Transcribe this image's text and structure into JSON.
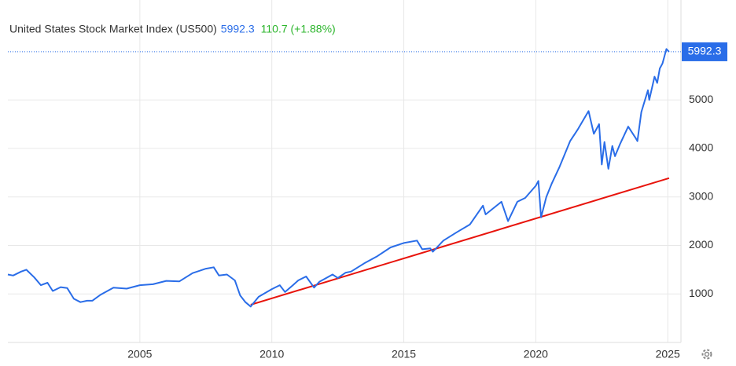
{
  "chart_data": {
    "type": "line",
    "title": "United States Stock Market Index (US500)",
    "last_value": 5992.3,
    "change_label": "110.7 (+1.88%)",
    "xlim": [
      2000,
      2025.5
    ],
    "xticks": [
      2005,
      2010,
      2015,
      2020,
      2025
    ],
    "ylim": [
      0,
      7060
    ],
    "yticks": [
      1000,
      2000,
      3000,
      4000,
      5000
    ],
    "grid": true,
    "series": [
      {
        "color": "#2a6de8",
        "x": [
          2000.0,
          2000.2,
          2000.5,
          2000.7,
          2001.0,
          2001.25,
          2001.5,
          2001.7,
          2002.0,
          2002.25,
          2002.5,
          2002.75,
          2003.0,
          2003.2,
          2003.5,
          2004.0,
          2004.5,
          2005.0,
          2005.5,
          2006.0,
          2006.5,
          2007.0,
          2007.5,
          2007.8,
          2008.0,
          2008.3,
          2008.6,
          2008.8,
          2009.0,
          2009.2,
          2009.5,
          2010.0,
          2010.3,
          2010.5,
          2010.8,
          2011.0,
          2011.3,
          2011.6,
          2011.8,
          2012.0,
          2012.3,
          2012.5,
          2012.8,
          2013.0,
          2013.5,
          2014.0,
          2014.5,
          2015.0,
          2015.5,
          2015.7,
          2016.0,
          2016.1,
          2016.5,
          2017.0,
          2017.5,
          2018.0,
          2018.1,
          2018.7,
          2018.95,
          2019.3,
          2019.6,
          2020.0,
          2020.1,
          2020.2,
          2020.4,
          2020.6,
          2020.9,
          2021.0,
          2021.3,
          2021.6,
          2022.0,
          2022.2,
          2022.4,
          2022.5,
          2022.6,
          2022.75,
          2022.9,
          2023.0,
          2023.2,
          2023.5,
          2023.8,
          2023.85,
          2024.0,
          2024.25,
          2024.3,
          2024.5,
          2024.6,
          2024.7,
          2024.8,
          2024.95,
          2025.05
        ],
        "values": [
          1400,
          1380,
          1460,
          1500,
          1340,
          1180,
          1230,
          1060,
          1140,
          1120,
          900,
          830,
          860,
          860,
          980,
          1130,
          1110,
          1180,
          1200,
          1270,
          1260,
          1430,
          1520,
          1550,
          1380,
          1400,
          1280,
          970,
          830,
          740,
          940,
          1100,
          1180,
          1040,
          1180,
          1280,
          1360,
          1130,
          1250,
          1310,
          1400,
          1330,
          1440,
          1460,
          1630,
          1780,
          1960,
          2050,
          2100,
          1920,
          1940,
          1870,
          2100,
          2270,
          2430,
          2820,
          2640,
          2900,
          2500,
          2900,
          2980,
          3230,
          3330,
          2580,
          3000,
          3270,
          3620,
          3750,
          4150,
          4400,
          4770,
          4300,
          4500,
          3670,
          4130,
          3580,
          4050,
          3840,
          4100,
          4450,
          4200,
          4150,
          4750,
          5200,
          5000,
          5480,
          5350,
          5650,
          5750,
          6050,
          5992.3
        ]
      }
    ],
    "trendline": {
      "color": "#e8140c",
      "x": [
        2009.2,
        2025.05
      ],
      "values": [
        778,
        3387
      ]
    }
  }
}
